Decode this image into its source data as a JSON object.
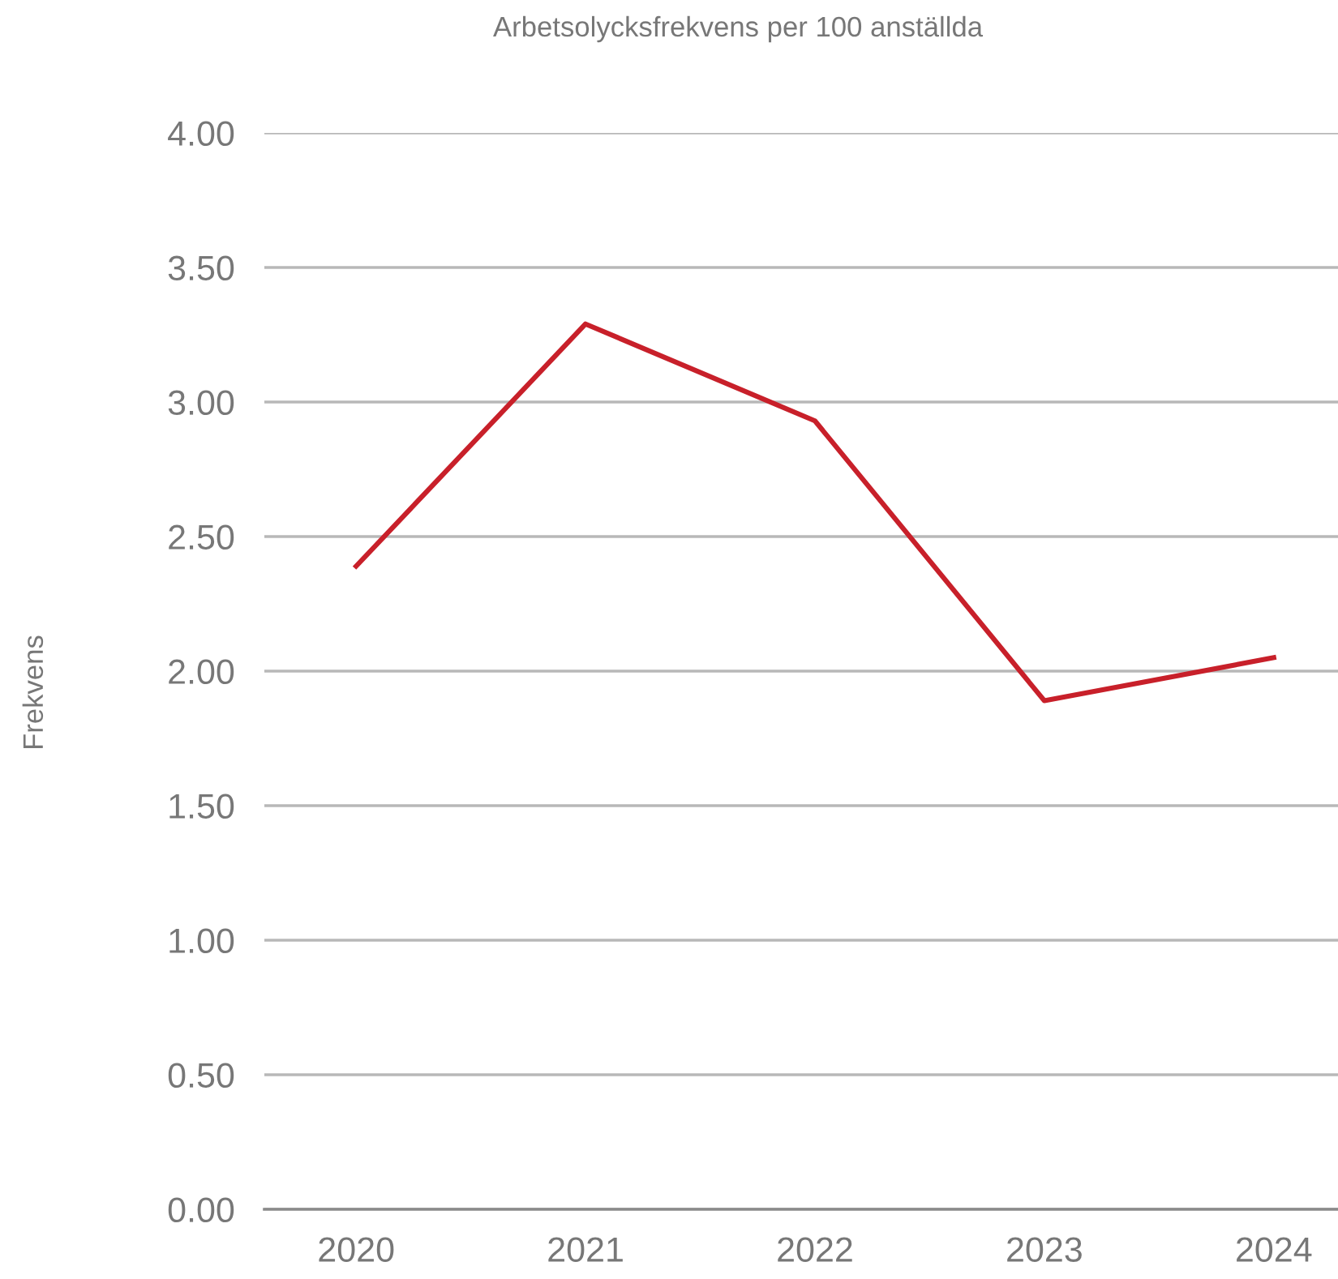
{
  "chart_data": {
    "type": "line",
    "title": "Arbetsolycksfrekvens per 100 anställda",
    "ylabel": "Frekvens",
    "categories": [
      "2020",
      "2021",
      "2022",
      "2023",
      "2024"
    ],
    "series": [
      {
        "color": "#c8202a",
        "values": [
          2.39,
          3.29,
          2.93,
          1.89,
          2.05
        ]
      }
    ],
    "ylim": [
      0,
      4
    ],
    "yticks": [
      {
        "value": 0,
        "label": "0.00"
      },
      {
        "value": 0.5,
        "label": "0.50"
      },
      {
        "value": 1,
        "label": "1.00"
      },
      {
        "value": 1.5,
        "label": "1.50"
      },
      {
        "value": 2,
        "label": "2.00"
      },
      {
        "value": 2.5,
        "label": "2.50"
      },
      {
        "value": 3,
        "label": "3.00"
      },
      {
        "value": 3.5,
        "label": "3.50"
      },
      {
        "value": 4,
        "label": "4.00"
      }
    ],
    "grid": "y",
    "marker": "none",
    "line_style": "solid"
  }
}
